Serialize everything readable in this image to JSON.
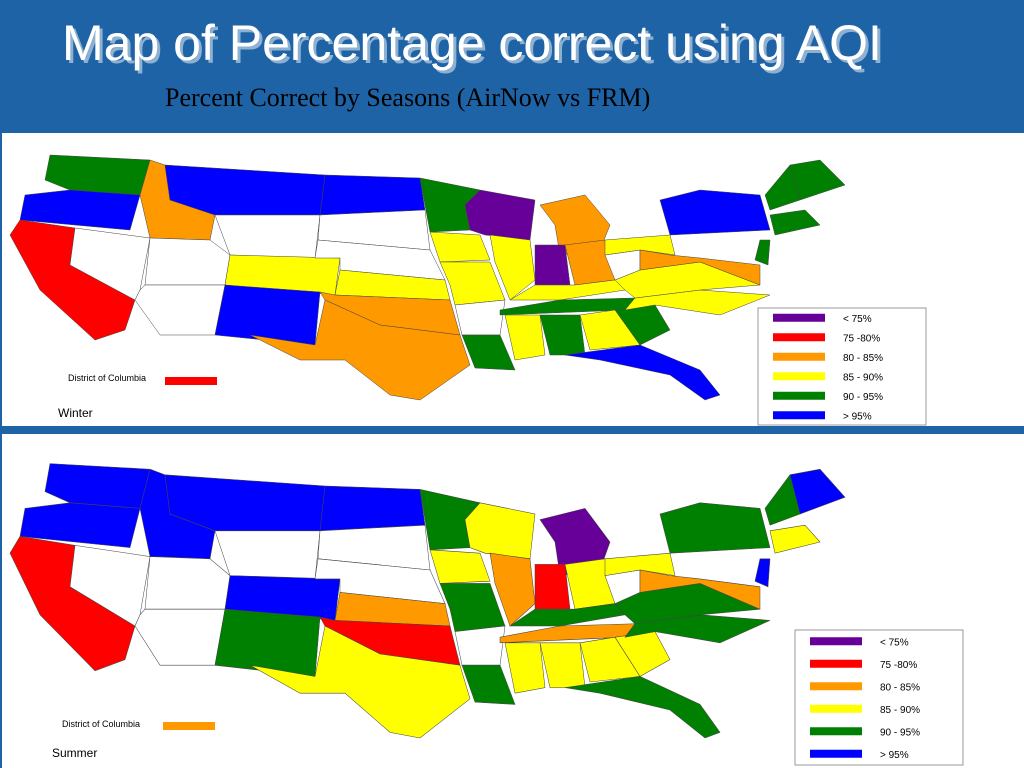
{
  "title": "Map of Percentage correct using AQI",
  "subtitle": "Percent Correct by Seasons (AirNow vs FRM)",
  "maps": [
    {
      "label": "Winter",
      "dc_label": "District of Columbia",
      "dc_class": 1,
      "legend": [
        {
          "label": "< 75%",
          "color": "#660099"
        },
        {
          "label": "75 -80%",
          "color": "#ff0000"
        },
        {
          "label": "80 - 85%",
          "color": "#ff9900"
        },
        {
          "label": "85 - 90%",
          "color": "#ffff00"
        },
        {
          "label": "90 - 95%",
          "color": "#008000"
        },
        {
          "label": "> 95%",
          "color": "#0000ff"
        }
      ],
      "state_classes": [
        4,
        5,
        1,
        null,
        2,
        5,
        null,
        null,
        null,
        3,
        5,
        5,
        null,
        null,
        3,
        2,
        2,
        4,
        3,
        3,
        null,
        4,
        0,
        3,
        2,
        0,
        2,
        3,
        4,
        3,
        4,
        3,
        5,
        4,
        3,
        3,
        null,
        3,
        5,
        4,
        4,
        4,
        4,
        2
      ]
    },
    {
      "label": "Summer",
      "dc_label": "District of Columbia",
      "dc_class": 2,
      "legend": [
        {
          "label": "< 75%",
          "color": "#660099"
        },
        {
          "label": "75 -80%",
          "color": "#ff0000"
        },
        {
          "label": "80 - 85%",
          "color": "#ff9900"
        },
        {
          "label": "85 - 90%",
          "color": "#ffff00"
        },
        {
          "label": "90 - 95%",
          "color": "#008000"
        },
        {
          "label": "> 95%",
          "color": "#0000ff"
        }
      ],
      "state_classes": [
        5,
        5,
        1,
        null,
        5,
        5,
        null,
        null,
        null,
        5,
        4,
        5,
        null,
        null,
        2,
        1,
        3,
        4,
        3,
        4,
        null,
        4,
        3,
        2,
        0,
        1,
        3,
        4,
        2,
        3,
        3,
        3,
        4,
        3,
        4,
        4,
        null,
        3,
        4,
        5,
        4,
        3,
        5,
        2
      ]
    }
  ]
}
